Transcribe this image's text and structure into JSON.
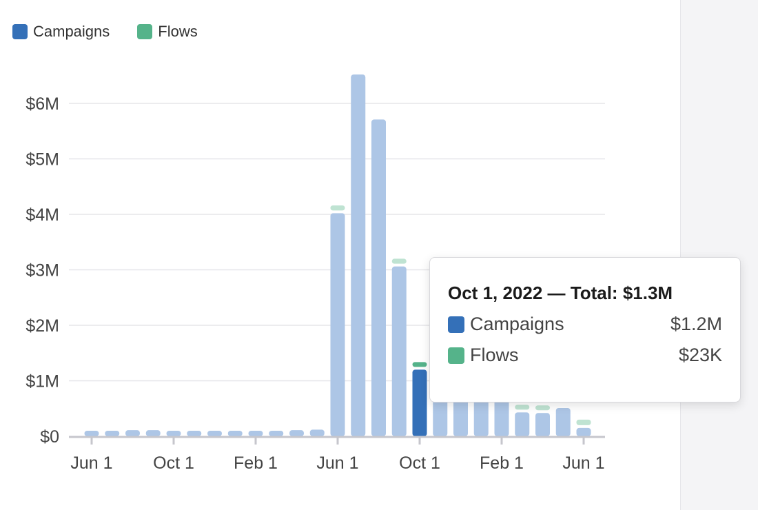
{
  "chart_data": {
    "type": "bar",
    "stacked": true,
    "categories": [
      "2021-06",
      "2021-07",
      "2021-08",
      "2021-09",
      "2021-10",
      "2021-11",
      "2021-12",
      "2022-01",
      "2022-02",
      "2022-03",
      "2022-04",
      "2022-05",
      "2022-06",
      "2022-07",
      "2022-08",
      "2022-09",
      "2022-10",
      "2022-11",
      "2022-12",
      "2023-01",
      "2023-02",
      "2023-03",
      "2023-04",
      "2023-05",
      "2023-06"
    ],
    "x_tick_labels": [
      "Jun 1",
      "Oct 1",
      "Feb 1",
      "Jun 1",
      "Oct 1",
      "Feb 1",
      "Jun 1"
    ],
    "x_tick_indices": [
      0,
      4,
      8,
      12,
      16,
      20,
      24
    ],
    "y_tick_labels": [
      "$0",
      "$1M",
      "$2M",
      "$3M",
      "$4M",
      "$5M",
      "$6M"
    ],
    "y_ticks": [
      0,
      1,
      2,
      3,
      4,
      5,
      6
    ],
    "ylim": [
      0,
      6.6
    ],
    "yunit": "$M",
    "grid": true,
    "legend_position": "top-left",
    "series": [
      {
        "name": "Campaigns",
        "color": "#3470b8",
        "color_faded": "#adc6e6",
        "values": [
          0.1,
          0.1,
          0.11,
          0.11,
          0.1,
          0.09,
          0.1,
          0.09,
          0.1,
          0.1,
          0.11,
          0.12,
          4.02,
          6.52,
          5.71,
          3.06,
          1.2,
          1.0,
          0.95,
          0.9,
          0.85,
          0.43,
          0.42,
          0.51,
          0.15
        ]
      },
      {
        "name": "Flows",
        "color": "#55b38a",
        "color_faded": "#bfe3d2",
        "values": [
          null,
          null,
          null,
          null,
          null,
          null,
          null,
          null,
          null,
          null,
          null,
          null,
          0.09,
          null,
          null,
          0.09,
          0.023,
          null,
          null,
          null,
          null,
          0.05,
          0.05,
          null,
          0.1
        ]
      }
    ],
    "highlight_index": 16
  },
  "legend": {
    "items": [
      {
        "label": "Campaigns",
        "color": "#3470b8"
      },
      {
        "label": "Flows",
        "color": "#55b38a"
      }
    ]
  },
  "tooltip": {
    "title": "Oct 1, 2022 — Total: $1.3M",
    "rows": [
      {
        "label": "Campaigns",
        "value": "$1.2M",
        "color": "#3470b8"
      },
      {
        "label": "Flows",
        "value": "$23K",
        "color": "#55b38a"
      }
    ]
  }
}
